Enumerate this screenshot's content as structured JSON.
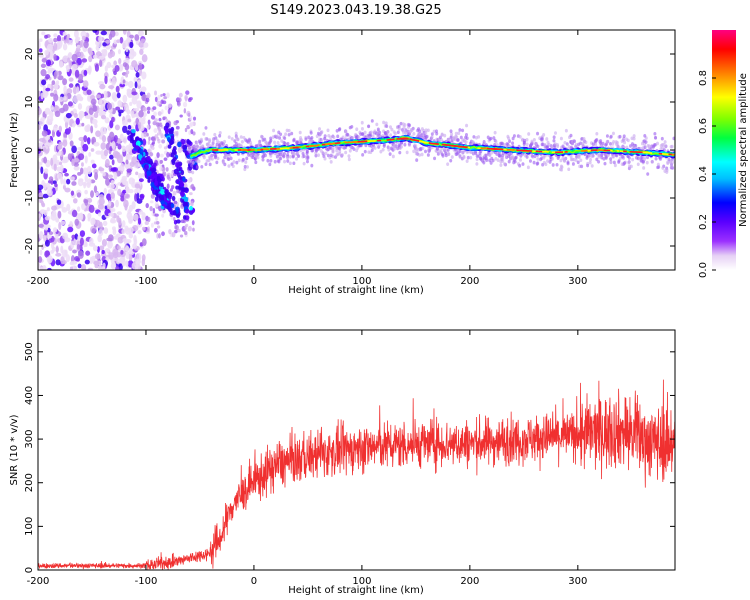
{
  "title": "S149.2023.043.19.38.G25",
  "chart_data": [
    {
      "type": "heatmap",
      "xlabel": "Height of straight line (km)",
      "ylabel": "Frequency (Hz)",
      "xlim": [
        -200,
        390
      ],
      "ylim": [
        -25,
        25
      ],
      "x_ticks": [
        -200,
        -100,
        0,
        100,
        200,
        300
      ],
      "y_ticks": [
        -20,
        -10,
        0,
        10,
        20
      ],
      "colorbar": {
        "label": "Normalized spectral amplitude",
        "range": [
          0,
          1
        ],
        "ticks": [
          "0.0",
          "0.2",
          "0.4",
          "0.6",
          "0.8"
        ],
        "colors": [
          "#ffffff",
          "#e6d0f5",
          "#9b30ff",
          "#5a00ff",
          "#0000ff",
          "#00bfff",
          "#00ffff",
          "#00ff40",
          "#80ff00",
          "#ffff00",
          "#ff8000",
          "#ff0000",
          "#ff0080"
        ]
      },
      "ridge": {
        "x": [
          -70,
          -60,
          -50,
          -40,
          -20,
          0,
          40,
          80,
          120,
          140,
          160,
          200,
          240,
          280,
          320,
          360,
          390
        ],
        "freq": [
          -2,
          -1.5,
          -0.5,
          0,
          0,
          0,
          0.5,
          1.5,
          2,
          2.5,
          1.5,
          0.5,
          0,
          -0.5,
          0,
          -0.5,
          -1
        ]
      }
    },
    {
      "type": "line",
      "xlabel": "Height of straight line (km)",
      "ylabel": "SNR (10 * v/v)",
      "xlim": [
        -200,
        390
      ],
      "ylim": [
        0,
        550
      ],
      "x_ticks": [
        -200,
        -100,
        0,
        100,
        200,
        300
      ],
      "y_ticks": [
        0,
        100,
        200,
        300,
        400,
        500
      ],
      "color": "#f03030",
      "trend": {
        "x": [
          -200,
          -100,
          -70,
          -40,
          -30,
          -20,
          0,
          20,
          50,
          100,
          150,
          200,
          250,
          300,
          340,
          360,
          380,
          390
        ],
        "y": [
          10,
          10,
          20,
          40,
          80,
          150,
          200,
          240,
          260,
          280,
          290,
          290,
          300,
          310,
          320,
          300,
          290,
          300
        ]
      }
    }
  ]
}
